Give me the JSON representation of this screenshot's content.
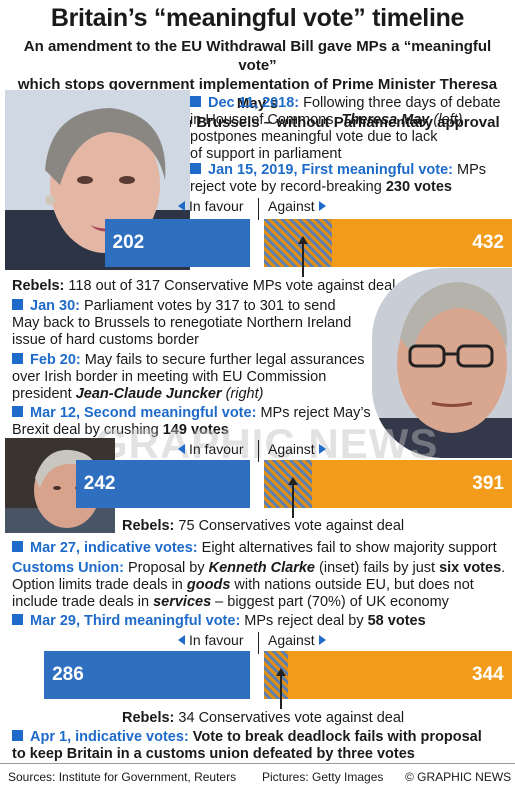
{
  "header": {
    "title": "Britain’s “meaningful vote” timeline",
    "subtitle_1": "An amendment to the EU Withdrawal Bill gave MPs a “meaningful vote”",
    "subtitle_2": "which stops government implementation of Prime Minister Theresa May’s",
    "subtitle_3": "Brexit deal – agreed with Brussels – without Parliamentary approval"
  },
  "events": {
    "dec11": {
      "date": "Dec 11, 2018:",
      "l1": " Following three days of debate",
      "l2a": "in House of Commons, ",
      "l2b": "Theresa May",
      "l2c": " (left)",
      "l3": "postpones meaningful vote due to lack",
      "l4": "of support in parliament"
    },
    "jan15": {
      "date": "Jan 15, 2019, First meaningful vote:",
      "rest": " MPs",
      "l2a": "reject vote by record-breaking ",
      "l2b": "230 votes"
    },
    "jan30": {
      "date": "Jan 30:",
      "l1": " Parliament votes by 317 to 301 to send",
      "l2": "May back to Brussels to renegotiate Northern Ireland",
      "l3": "issue of hard customs border"
    },
    "feb20": {
      "date": "Feb 20:",
      "l1": " May fails to secure further legal assurances",
      "l2": "over Irish border in meeting with EU Commission",
      "l3a": "president ",
      "l3b": "Jean-Claude Juncker",
      "l3c": " (right)"
    },
    "mar12": {
      "date": "Mar 12, Second meaningful vote:",
      "rest": " MPs reject May’s",
      "l2a": "Brexit deal by crushing ",
      "l2b": "149 votes"
    },
    "mar27": {
      "date": "Mar 27, indicative votes:",
      "rest": " Eight alternatives fail to show majority support"
    },
    "customs": {
      "head": "Customs Union:",
      "l1a": " Proposal by ",
      "l1b": "Kenneth Clarke",
      "l1c": " (inset) fails by just ",
      "l1d": "six votes",
      "l1e": ".",
      "l2a": "Option limits trade deals in ",
      "l2b": "goods",
      "l2c": " with nations outside EU, but does not",
      "l3a": "include trade deals in ",
      "l3b": "services",
      "l3c": " – biggest part (70%) of UK economy"
    },
    "mar29": {
      "date": "Mar 29, Third meaningful vote:",
      "rest": " MPs reject deal by ",
      "bold": "58 votes"
    },
    "apr1": {
      "date": "Apr 1, indicative votes:",
      "l1": " Vote to break deadlock fails with proposal",
      "l2": "to keep Britain in a customs union defeated by three votes"
    }
  },
  "votes": {
    "labels": {
      "favour": "In favour",
      "against": "Against"
    },
    "v1": {
      "favour": "202",
      "against": "432",
      "rebels_head": "Rebels:",
      "rebels_text": " 118 out of 317 Conservative MPs vote against deal"
    },
    "v2": {
      "favour": "242",
      "against": "391",
      "rebels_head": "Rebels:",
      "rebels_text": " 75 Conservatives vote against deal"
    },
    "v3": {
      "favour": "286",
      "against": "344",
      "rebels_head": "Rebels:",
      "rebels_text": " 34 Conservatives vote against deal"
    }
  },
  "chart_data": {
    "type": "bar",
    "categories": [
      "Jan 15, 2019",
      "Mar 12",
      "Mar 29"
    ],
    "series": [
      {
        "name": "In favour",
        "values": [
          202,
          242,
          286
        ]
      },
      {
        "name": "Against",
        "values": [
          432,
          391,
          344
        ]
      }
    ],
    "rebels": [
      118,
      75,
      34
    ]
  },
  "watermark": "GRAPHIC NEWS",
  "footer": {
    "sources": "Sources: Institute for Government, Reuters",
    "pictures": "Pictures: Getty Images",
    "credit": "© GRAPHIC NEWS"
  },
  "colors": {
    "accent": "#1f6bc9",
    "favour": "#2f6fc0",
    "against": "#f39c1b"
  }
}
